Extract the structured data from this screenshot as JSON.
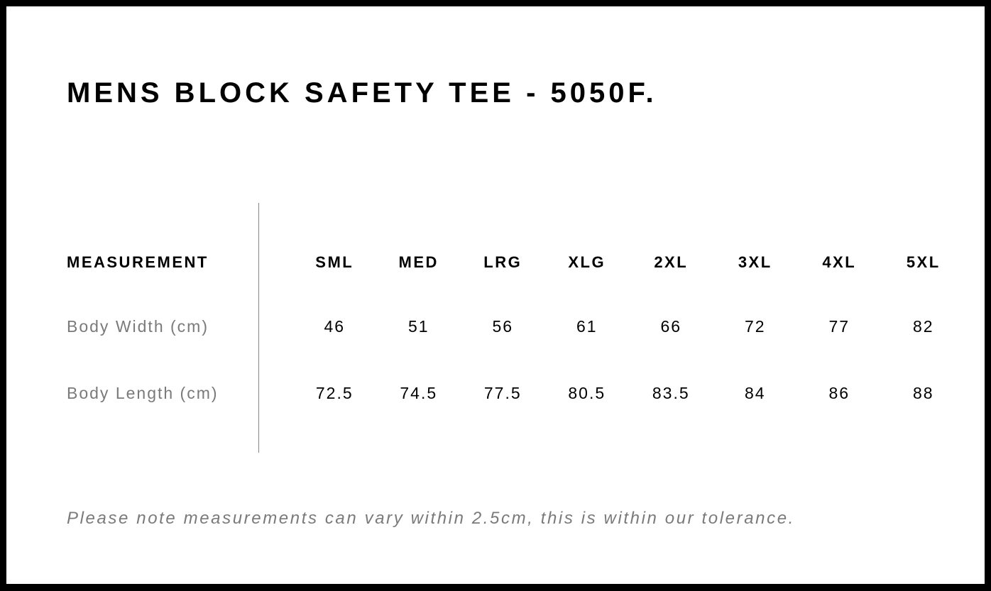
{
  "title": "MENS BLOCK SAFETY TEE - 5050F.",
  "table": {
    "header_label": "MEASUREMENT",
    "sizes": [
      "SML",
      "MED",
      "LRG",
      "XLG",
      "2XL",
      "3XL",
      "4XL",
      "5XL"
    ],
    "rows": [
      {
        "label": "Body Width (cm)",
        "values": [
          "46",
          "51",
          "56",
          "61",
          "66",
          "72",
          "77",
          "82"
        ]
      },
      {
        "label": "Body Length (cm)",
        "values": [
          "72.5",
          "74.5",
          "77.5",
          "80.5",
          "83.5",
          "84",
          "86",
          "88"
        ]
      }
    ]
  },
  "note": "Please note measurements can vary within 2.5cm, this is within our tolerance."
}
